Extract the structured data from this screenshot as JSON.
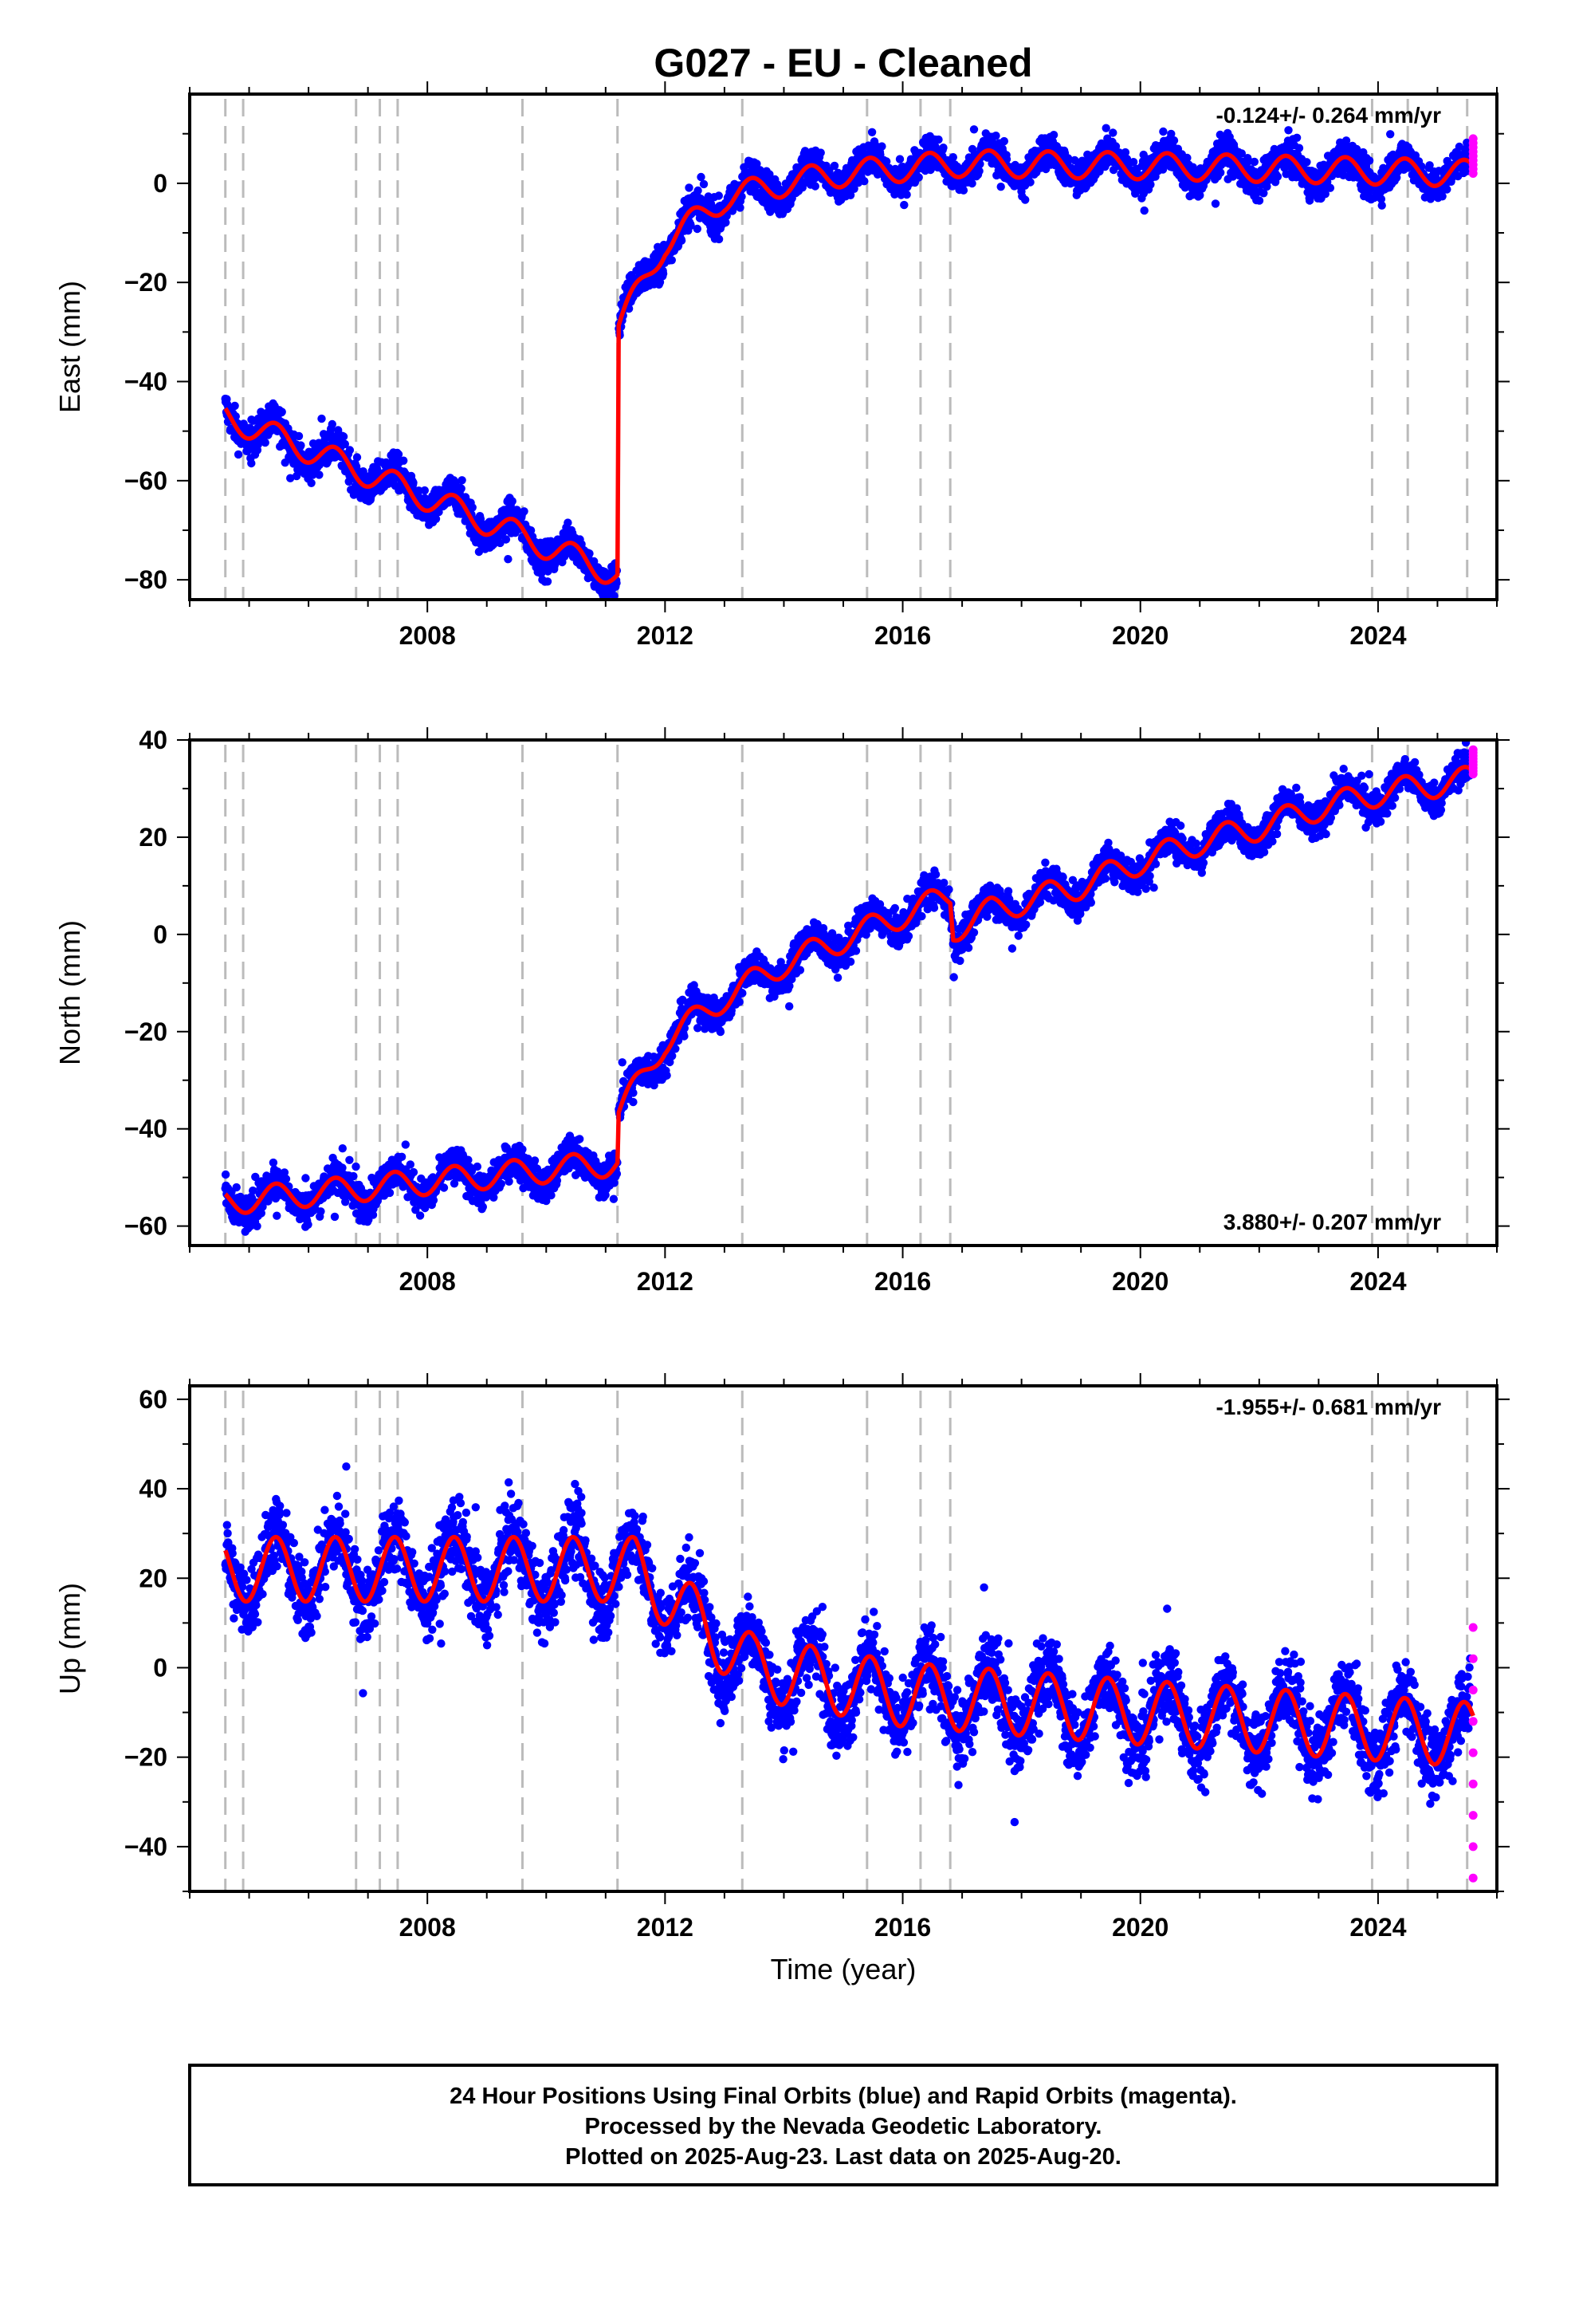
{
  "title": "G027  - EU - Cleaned",
  "xlabel": "Time (year)",
  "footer": [
    "24 Hour Positions Using Final Orbits (blue) and Rapid Orbits (magenta).",
    "Processed by the Nevada Geodetic Laboratory.",
    "Plotted on 2025-Aug-23. Last data on 2025-Aug-20."
  ],
  "colors": {
    "final": "#0000ff",
    "rapid": "#ff00ff",
    "model": "#ff0000",
    "steps": "#bbbbbb"
  },
  "chart_data": [
    {
      "type": "scatter",
      "name": "East",
      "ylabel": "East (mm)",
      "rate": "-0.124+/- 0.264 mm/yr",
      "rate_position": "top-right",
      "xlim": [
        2004.0,
        2026.0
      ],
      "ylim": [
        -84,
        18
      ],
      "x_ticks": [
        2008,
        2012,
        2016,
        2020,
        2024
      ],
      "y_ticks": [
        -80,
        -60,
        -40,
        -20,
        0
      ],
      "step_epochs": [
        2004.6,
        2004.9,
        2006.8,
        2007.2,
        2007.5,
        2009.6,
        2011.2,
        2013.3,
        2015.4,
        2016.3,
        2016.8,
        2023.9,
        2024.5,
        2025.5
      ],
      "model_trend": [
        [
          2004.6,
          -47
        ],
        [
          2011.2,
          -79
        ],
        [
          2011.22,
          -29
        ],
        [
          2012.0,
          -12
        ],
        [
          2013.0,
          -3
        ],
        [
          2014.0,
          0
        ],
        [
          2015.0,
          2
        ],
        [
          2016.0,
          3
        ],
        [
          2017.0,
          4
        ],
        [
          2020.0,
          3.5
        ],
        [
          2025.6,
          2
        ]
      ],
      "seasonal_amplitude": 3,
      "scatter_spread": 2.5,
      "rapid_range": [
        2,
        9
      ]
    },
    {
      "type": "scatter",
      "name": "North",
      "ylabel": "North (mm)",
      "rate": "3.880+/- 0.207 mm/yr",
      "rate_position": "bottom-right",
      "xlim": [
        2004.0,
        2026.0
      ],
      "ylim": [
        -64,
        40
      ],
      "x_ticks": [
        2008,
        2012,
        2016,
        2020,
        2024
      ],
      "y_ticks": [
        -60,
        -40,
        -20,
        0,
        20,
        40
      ],
      "step_epochs": [
        2004.6,
        2004.9,
        2006.8,
        2007.2,
        2007.5,
        2009.6,
        2011.2,
        2013.3,
        2015.4,
        2016.3,
        2016.8,
        2023.9,
        2024.5,
        2025.5
      ],
      "model_trend": [
        [
          2004.6,
          -55
        ],
        [
          2011.2,
          -47
        ],
        [
          2011.22,
          -37
        ],
        [
          2012.0,
          -22
        ],
        [
          2013.0,
          -13
        ],
        [
          2014.0,
          -6
        ],
        [
          2015.0,
          -1
        ],
        [
          2016.0,
          4
        ],
        [
          2016.8,
          8
        ],
        [
          2016.85,
          1
        ],
        [
          2017.5,
          5
        ],
        [
          2019.0,
          10
        ],
        [
          2020.0,
          15
        ],
        [
          2021.0,
          19
        ],
        [
          2022.0,
          22
        ],
        [
          2023.0,
          26
        ],
        [
          2024.0,
          29
        ],
        [
          2025.6,
          32
        ]
      ],
      "seasonal_amplitude": 3,
      "scatter_spread": 2.5,
      "rapid_range": [
        33,
        38
      ]
    },
    {
      "type": "scatter",
      "name": "Up",
      "ylabel": "Up (mm)",
      "rate": "-1.955+/- 0.681 mm/yr",
      "rate_position": "top-right",
      "xlim": [
        2004.0,
        2026.0
      ],
      "ylim": [
        -50,
        63
      ],
      "x_ticks": [
        2008,
        2012,
        2016,
        2020,
        2024
      ],
      "y_ticks": [
        -40,
        -20,
        0,
        20,
        40,
        60
      ],
      "step_epochs": [
        2004.6,
        2004.9,
        2006.8,
        2007.2,
        2007.5,
        2009.6,
        2011.2,
        2013.3,
        2015.4,
        2016.3,
        2016.8,
        2023.9,
        2024.5,
        2025.5
      ],
      "model_trend": [
        [
          2004.6,
          22
        ],
        [
          2011.5,
          22
        ],
        [
          2012.5,
          11
        ],
        [
          2013.5,
          0
        ],
        [
          2016.0,
          -6
        ],
        [
          2020.0,
          -10
        ],
        [
          2025.6,
          -15
        ]
      ],
      "seasonal_amplitude": 8,
      "scatter_spread": 6,
      "rapid_range": [
        -47,
        9
      ]
    }
  ]
}
